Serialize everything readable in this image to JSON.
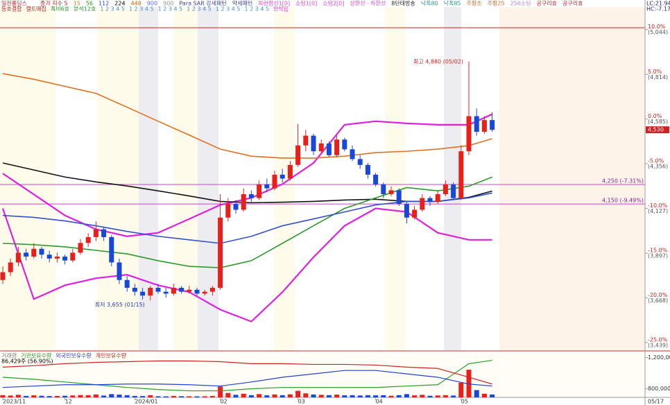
{
  "chart_data": {
    "type": "candlestick",
    "title": "일진홀딩스",
    "legend_top": [
      {
        "text": "종가 지수 5",
        "color": "#d01010"
      },
      {
        "text": "15",
        "color": "#d08000"
      },
      {
        "text": "56",
        "color": "#20a020"
      },
      {
        "text": "112",
        "color": "#2040d0"
      },
      {
        "text": "224",
        "color": "#000000"
      },
      {
        "text": "448",
        "color": "#d06000"
      },
      {
        "text": "900",
        "color": "#6060ff"
      },
      {
        "text": "900",
        "color": "#909090"
      },
      {
        "text": "Para SAR 강세패턴",
        "color": "#4040a0"
      },
      {
        "text": "약세패턴",
        "color": "#4040a0"
      },
      {
        "text": "파란점선1[0]",
        "color": "#e040e0"
      },
      {
        "text": "쇼팅1[0]",
        "color": "#e040e0"
      },
      {
        "text": "쇼팅2[0]",
        "color": "#e040e0"
      },
      {
        "text": "상한선 · 하한선",
        "color": "#e040e0"
      },
      {
        "text": "8단태방송",
        "color": "#202020"
      },
      {
        "text": "낙폭80",
        "color": "#20a0a0"
      },
      {
        "text": "낙폭85",
        "color": "#20a0a0"
      },
      {
        "text": "주황초",
        "color": "#e07020"
      },
      {
        "text": "주황25",
        "color": "#e07020"
      },
      {
        "text": "256소팅",
        "color": "#c080e0"
      },
      {
        "text": "공구리효",
        "color": "#c02020"
      },
      {
        "text": "공구리효",
        "color": "#c02020"
      }
    ],
    "legend_second": [
      {
        "text": "등호결합",
        "color": "#c02020"
      },
      {
        "text": "캘트매집",
        "color": "#c02020"
      },
      {
        "text": "폭비6호",
        "color": "#20a020"
      },
      {
        "text": "분석12호",
        "color": "#20a020"
      },
      {
        "text": "1 2 3 4 5",
        "color": "#4090d0"
      },
      {
        "text": "1 2 3 4 5",
        "color": "#4090d0"
      },
      {
        "text": "1 2 3 4 5",
        "color": "#4090d0"
      },
      {
        "text": "1 2 3 4 5",
        "color": "#4090d0"
      },
      {
        "text": "1 2 3 4 5",
        "color": "#4090d0"
      },
      {
        "text": "1 2 3 4 5",
        "color": "#4090d0"
      },
      {
        "text": "반박음",
        "color": "#e040e0"
      }
    ],
    "corner_labels": [
      "LC:21.94",
      "HC:-7.17"
    ],
    "ylim": [
      3400,
      5160
    ],
    "yticks": [
      {
        "value": 5044,
        "label": "10.0%",
        "price_label": "(5,044)"
      },
      {
        "value": 4814,
        "label": "5.0%",
        "price_label": "(4,814)"
      },
      {
        "value": 4585,
        "label": "0.0%",
        "price_label": "(4,585)"
      },
      {
        "value": 4356,
        "label": "-5.0%",
        "price_label": "(4,356)"
      },
      {
        "value": 4127,
        "label": "-10.0%",
        "price_label": "(4,127)"
      },
      {
        "value": 3897,
        "label": "-15.0%",
        "price_label": "(3,897)"
      },
      {
        "value": 3668,
        "label": "-20.0%",
        "price_label": "(3,668)"
      },
      {
        "value": 3439,
        "label": "-25.0%",
        "price_label": "(3,439)"
      }
    ],
    "last_price": {
      "value": 4530,
      "label": "4,530"
    },
    "hlines": [
      {
        "value": 4250,
        "label": "4,250 (-7.31%)",
        "color": "#d040d0"
      },
      {
        "value": 4150,
        "label": "4,150 (-9.49%)",
        "color": "#d040d0"
      }
    ],
    "annotations": [
      {
        "text": "최고 4,880 (05/02)",
        "index": 60,
        "value": 4880
      },
      {
        "text": "최저 3,655 (01/15)",
        "index": 19,
        "value": 3655
      }
    ],
    "xticks": [
      {
        "value": 0,
        "label": "2023/11"
      },
      {
        "value": 8,
        "label": "12"
      },
      {
        "value": 17,
        "label": "2024/01"
      },
      {
        "value": 28,
        "label": "02"
      },
      {
        "value": 38,
        "label": "03"
      },
      {
        "value": 48,
        "label": "04"
      },
      {
        "value": 59,
        "label": "05"
      }
    ],
    "end_date_label": "05/17",
    "up_color": "#e8201c",
    "down_color": "#1848d8",
    "candles": [
      [
        3760,
        3830,
        3740,
        3800
      ],
      [
        3800,
        3870,
        3780,
        3850
      ],
      [
        3850,
        3930,
        3830,
        3900
      ],
      [
        3900,
        3920,
        3860,
        3880
      ],
      [
        3880,
        3950,
        3870,
        3920
      ],
      [
        3920,
        3930,
        3870,
        3890
      ],
      [
        3890,
        3910,
        3850,
        3870
      ],
      [
        3870,
        3900,
        3850,
        3880
      ],
      [
        3880,
        3890,
        3840,
        3860
      ],
      [
        3860,
        3920,
        3850,
        3900
      ],
      [
        3900,
        3970,
        3890,
        3950
      ],
      [
        3950,
        4000,
        3930,
        3980
      ],
      [
        3980,
        4060,
        3960,
        4020
      ],
      [
        4020,
        4030,
        3960,
        3980
      ],
      [
        3980,
        3990,
        3830,
        3850
      ],
      [
        3850,
        3870,
        3740,
        3760
      ],
      [
        3760,
        3780,
        3700,
        3720
      ],
      [
        3720,
        3740,
        3680,
        3700
      ],
      [
        3700,
        3720,
        3660,
        3680
      ],
      [
        3680,
        3730,
        3655,
        3720
      ],
      [
        3720,
        3740,
        3690,
        3700
      ],
      [
        3700,
        3720,
        3670,
        3690
      ],
      [
        3690,
        3740,
        3680,
        3720
      ],
      [
        3720,
        3730,
        3690,
        3700
      ],
      [
        3700,
        3730,
        3690,
        3710
      ],
      [
        3710,
        3720,
        3680,
        3690
      ],
      [
        3690,
        3710,
        3680,
        3700
      ],
      [
        3700,
        3730,
        3680,
        3720
      ],
      [
        3720,
        4200,
        3710,
        4080
      ],
      [
        4080,
        4180,
        4060,
        4150
      ],
      [
        4150,
        4170,
        4100,
        4120
      ],
      [
        4120,
        4230,
        4110,
        4200
      ],
      [
        4200,
        4220,
        4160,
        4180
      ],
      [
        4180,
        4270,
        4170,
        4250
      ],
      [
        4250,
        4280,
        4210,
        4230
      ],
      [
        4230,
        4320,
        4220,
        4300
      ],
      [
        4300,
        4330,
        4260,
        4280
      ],
      [
        4280,
        4370,
        4270,
        4350
      ],
      [
        4350,
        4560,
        4340,
        4450
      ],
      [
        4450,
        4530,
        4420,
        4500
      ],
      [
        4500,
        4510,
        4400,
        4420
      ],
      [
        4420,
        4480,
        4410,
        4460
      ],
      [
        4460,
        4470,
        4390,
        4400
      ],
      [
        4400,
        4500,
        4390,
        4480
      ],
      [
        4480,
        4490,
        4420,
        4430
      ],
      [
        4430,
        4450,
        4370,
        4380
      ],
      [
        4380,
        4400,
        4330,
        4350
      ],
      [
        4350,
        4360,
        4280,
        4300
      ],
      [
        4300,
        4310,
        4240,
        4250
      ],
      [
        4250,
        4260,
        4180,
        4200
      ],
      [
        4200,
        4240,
        4190,
        4220
      ],
      [
        4220,
        4230,
        4140,
        4150
      ],
      [
        4150,
        4160,
        4050,
        4080
      ],
      [
        4080,
        4140,
        4070,
        4120
      ],
      [
        4120,
        4200,
        4110,
        4180
      ],
      [
        4180,
        4190,
        4140,
        4160
      ],
      [
        4160,
        4220,
        4150,
        4200
      ],
      [
        4200,
        4270,
        4190,
        4250
      ],
      [
        4250,
        4260,
        4170,
        4180
      ],
      [
        4180,
        4450,
        4170,
        4420
      ],
      [
        4420,
        4880,
        4400,
        4600
      ],
      [
        4600,
        4640,
        4500,
        4520
      ],
      [
        4520,
        4600,
        4510,
        4580
      ],
      [
        4580,
        4620,
        4520,
        4530
      ]
    ],
    "line_x": [
      0,
      4,
      8,
      12,
      16,
      20,
      24,
      28,
      32,
      36,
      40,
      44,
      48,
      52,
      56,
      60,
      63
    ],
    "series": [
      {
        "color": "#e020e0",
        "values": [
          4306,
          4199,
          4091,
          4020,
          3984,
          4002,
          4073,
          4145,
          4181,
          4252,
          4360,
          4556,
          4574,
          4563,
          4556,
          4556,
          4610
        ]
      },
      {
        "color": "#e020e0",
        "values": [
          4127,
          3662,
          3733,
          3769,
          3787,
          3733,
          3698,
          3608,
          3547,
          3698,
          3877,
          4038,
          4127,
          4109,
          4002,
          3966,
          3966
        ]
      },
      {
        "color": "#111111",
        "values": [
          4360,
          4324,
          4288,
          4263,
          4242,
          4217,
          4191,
          4163,
          4156,
          4159,
          4163,
          4170,
          4174,
          4163,
          4163,
          4184,
          4216
        ]
      },
      {
        "color": "#e07020",
        "values": [
          4818,
          4789,
          4753,
          4717,
          4646,
          4574,
          4503,
          4431,
          4395,
          4385,
          4385,
          4395,
          4413,
          4420,
          4431,
          4449,
          4485
        ]
      },
      {
        "color": "#2a9a2a",
        "values": [
          3948,
          3941,
          3930,
          3912,
          3894,
          3859,
          3830,
          3823,
          3859,
          3948,
          4038,
          4127,
          4181,
          4234,
          4217,
          4241,
          4288
        ]
      },
      {
        "color": "#3050d0",
        "values": [
          4091,
          4081,
          4063,
          4038,
          4009,
          3984,
          3966,
          3948,
          3984,
          4038,
          4073,
          4109,
          4145,
          4163,
          4163,
          4181,
          4206
        ]
      }
    ],
    "volume_panel": {
      "legend": [
        {
          "text": "거래량",
          "color": "#808080"
        },
        {
          "text": "기관보유수량",
          "color": "#20a020"
        },
        {
          "text": "외국인보유수량",
          "color": "#2040d0"
        },
        {
          "text": "개인보유수량",
          "color": "#d02020"
        }
      ],
      "info": "86,429주 (56.90%)",
      "ylim": [
        690000,
        1250000
      ],
      "yticks": [
        {
          "value": 1200000,
          "label": "1,200,000"
        },
        {
          "value": 800000,
          "label": "800,000"
        }
      ],
      "volume_ylim": [
        0,
        600000
      ],
      "volumes": [
        30000,
        25000,
        35000,
        20000,
        28000,
        22000,
        18000,
        20000,
        22000,
        26000,
        32000,
        30000,
        40000,
        25000,
        45000,
        38000,
        30000,
        20000,
        18000,
        30000,
        15000,
        14000,
        20000,
        16000,
        15000,
        14000,
        15000,
        20000,
        150000,
        60000,
        35000,
        50000,
        30000,
        45000,
        28000,
        40000,
        30000,
        42000,
        90000,
        55000,
        40000,
        35000,
        30000,
        38000,
        28000,
        30000,
        26000,
        30000,
        28000,
        30000,
        22000,
        30000,
        45000,
        28000,
        35000,
        22000,
        26000,
        30000,
        25000,
        200000,
        380000,
        100000,
        50000,
        40000
      ],
      "series": [
        {
          "color": "#20a020",
          "values": [
            948000,
            922000,
            887000,
            852000,
            817000,
            791000,
            774000,
            774000,
            800000,
            817000,
            817000,
            817000,
            817000,
            835000,
            852000,
            1122000,
            1165000
          ]
        },
        {
          "color": "#2040d0",
          "values": [
            817000,
            835000,
            852000,
            852000,
            861000,
            861000,
            852000,
            835000,
            887000,
            948000,
            991000,
            1035000,
            1035000,
            991000,
            948000,
            861000,
            835000
          ]
        },
        {
          "color": "#d02020",
          "values": [
            1078000,
            1096000,
            1122000,
            1139000,
            1148000,
            1157000,
            1157000,
            1148000,
            1122000,
            1122000,
            1113000,
            1113000,
            1104000,
            1078000,
            1061000,
            948000,
            861000
          ]
        }
      ]
    }
  }
}
